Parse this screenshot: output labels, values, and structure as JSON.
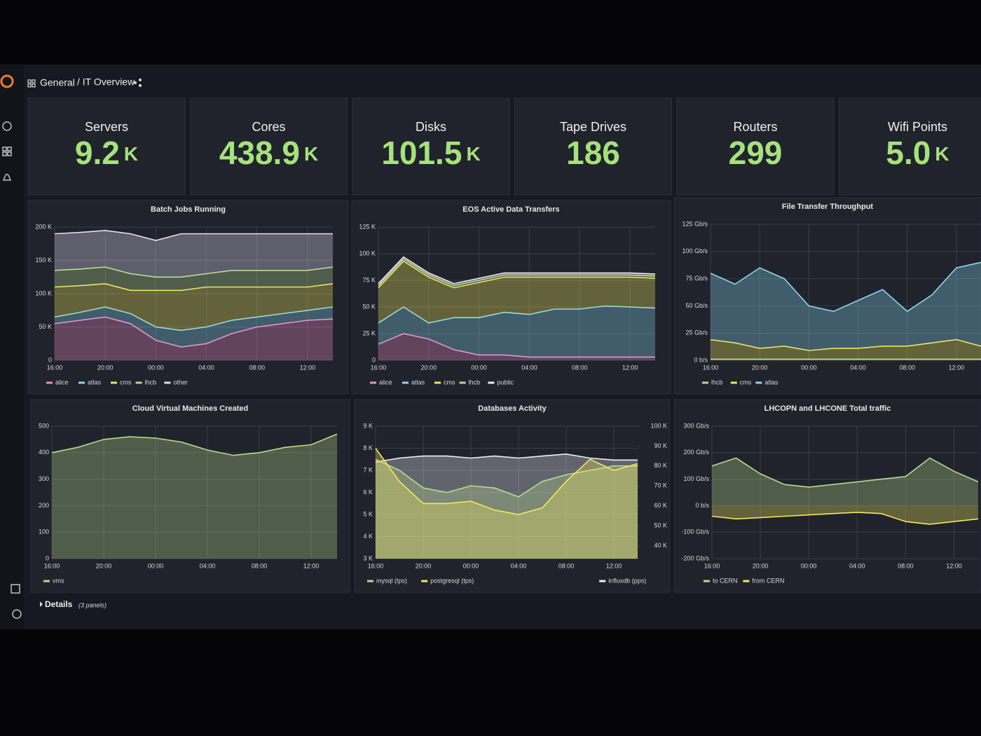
{
  "header": {
    "folder": "General",
    "title": "/ IT Overview"
  },
  "stats": [
    {
      "title": "Servers",
      "value": "9.2",
      "unit": "K"
    },
    {
      "title": "Cores",
      "value": "438.9",
      "unit": "K"
    },
    {
      "title": "Disks",
      "value": "101.5",
      "unit": "K"
    },
    {
      "title": "Tape Drives",
      "value": "186",
      "unit": ""
    },
    {
      "title": "Routers",
      "value": "299",
      "unit": ""
    },
    {
      "title": "Wifi Points",
      "value": "5.0",
      "unit": "K"
    }
  ],
  "chart_data": [
    {
      "type": "area",
      "stacked": true,
      "title": "Batch Jobs Running",
      "categories": [
        "16:00",
        null,
        "20:00",
        null,
        "00:00",
        null,
        "04:00",
        null,
        "08:00",
        null,
        "12:00",
        null
      ],
      "ylim": [
        0,
        200000
      ],
      "yticks": [
        0,
        {
          "value": 50000,
          "label": "50 K"
        },
        {
          "value": 100000,
          "label": "100 K"
        },
        {
          "value": 150000,
          "label": "150 K"
        },
        {
          "value": 200000,
          "label": "200 K"
        }
      ],
      "grid": true,
      "legend": "bottom",
      "series": [
        {
          "name": "alice",
          "color": "#f08cc8",
          "values": [
            55000,
            60000,
            65000,
            55000,
            30000,
            20000,
            25000,
            40000,
            50000,
            55000,
            60000,
            62000
          ]
        },
        {
          "name": "atlas",
          "color": "#8ad8ee",
          "values": [
            10000,
            12000,
            15000,
            15000,
            20000,
            25000,
            25000,
            20000,
            15000,
            15000,
            15000,
            18000
          ]
        },
        {
          "name": "cms",
          "color": "#f2e85a",
          "values": [
            45000,
            40000,
            35000,
            35000,
            55000,
            60000,
            60000,
            50000,
            45000,
            40000,
            35000,
            35000
          ]
        },
        {
          "name": "lhcb",
          "color": "#b7db8c",
          "values": [
            25000,
            25000,
            25000,
            25000,
            20000,
            20000,
            20000,
            25000,
            25000,
            25000,
            25000,
            25000
          ]
        },
        {
          "name": "other",
          "color": "#e6dcf6",
          "values": [
            55000,
            55000,
            55000,
            60000,
            55000,
            65000,
            60000,
            55000,
            55000,
            55000,
            55000,
            50000
          ]
        }
      ]
    },
    {
      "type": "area",
      "stacked": true,
      "title": "EOS Active Data Transfers",
      "categories": [
        "16:00",
        null,
        "20:00",
        null,
        "00:00",
        null,
        "04:00",
        null,
        "08:00",
        null,
        "12:00",
        null
      ],
      "ylim": [
        0,
        125000
      ],
      "yticks": [
        0,
        {
          "value": 25000,
          "label": "25 K"
        },
        {
          "value": 50000,
          "label": "50 K"
        },
        {
          "value": 75000,
          "label": "75 K"
        },
        {
          "value": 100000,
          "label": "100 K"
        },
        {
          "value": 125000,
          "label": "125 K"
        }
      ],
      "grid": true,
      "legend": "bottom",
      "series": [
        {
          "name": "alice",
          "color": "#f08cc8",
          "values": [
            15000,
            25000,
            20000,
            10000,
            5000,
            5000,
            3000,
            3000,
            3000,
            3000,
            3000,
            3000
          ]
        },
        {
          "name": "atlas",
          "color": "#8ad8ee",
          "values": [
            20000,
            25000,
            15000,
            30000,
            35000,
            40000,
            40000,
            45000,
            45000,
            48000,
            47000,
            46000
          ]
        },
        {
          "name": "cms",
          "color": "#f2e85a",
          "values": [
            33000,
            43000,
            43000,
            28000,
            33000,
            33000,
            35000,
            30000,
            30000,
            27000,
            28000,
            28000
          ]
        },
        {
          "name": "lhcb",
          "color": "#b7db8c",
          "values": [
            2000,
            2000,
            2000,
            2000,
            2000,
            2000,
            2000,
            2000,
            2000,
            2000,
            2000,
            2000
          ]
        },
        {
          "name": "public",
          "color": "#f0eef8",
          "values": [
            2000,
            2000,
            2000,
            2000,
            2000,
            2000,
            2000,
            2000,
            2000,
            2000,
            2000,
            2000
          ]
        }
      ]
    },
    {
      "type": "area",
      "stacked": true,
      "title": "File Transfer Throughput",
      "categories": [
        "16:00",
        null,
        "20:00",
        null,
        "00:00",
        null,
        "04:00",
        null,
        "08:00",
        null,
        "12:00",
        null
      ],
      "ylim": [
        0,
        125
      ],
      "yticks": [
        {
          "value": 0,
          "label": "0 b/s"
        },
        {
          "value": 25,
          "label": "25 Gb/s"
        },
        {
          "value": 50,
          "label": "50 Gb/s"
        },
        {
          "value": 75,
          "label": "75 Gb/s"
        },
        {
          "value": 100,
          "label": "100 Gb/s"
        },
        {
          "value": 125,
          "label": "125 Gb/s"
        }
      ],
      "grid": true,
      "legend": "bottom",
      "series": [
        {
          "name": "lhcb",
          "color": "#b7db8c",
          "values": [
            1,
            1,
            1,
            1,
            1,
            1,
            1,
            1,
            1,
            1,
            1,
            1
          ]
        },
        {
          "name": "cms",
          "color": "#f2e85a",
          "values": [
            18,
            15,
            10,
            12,
            8,
            10,
            10,
            12,
            12,
            15,
            18,
            12
          ]
        },
        {
          "name": "atlas",
          "color": "#8ad8ee",
          "values": [
            61,
            54,
            74,
            62,
            41,
            34,
            44,
            52,
            32,
            44,
            66,
            77
          ]
        }
      ]
    },
    {
      "type": "area",
      "stacked": false,
      "title": "Cloud Virtual Machines Created",
      "categories": [
        "16:00",
        null,
        "20:00",
        null,
        "00:00",
        null,
        "04:00",
        null,
        "08:00",
        null,
        "12:00",
        null
      ],
      "ylim": [
        0,
        500
      ],
      "yticks": [
        0,
        100,
        200,
        300,
        400,
        500
      ],
      "grid": true,
      "legend": "bottom",
      "series": [
        {
          "name": "vms",
          "color": "#b7db8c",
          "values": [
            400,
            420,
            450,
            460,
            455,
            440,
            410,
            390,
            400,
            420,
            430,
            470
          ]
        }
      ]
    },
    {
      "type": "area",
      "stacked": false,
      "title": "Databases Activity",
      "categories": [
        "16:00",
        null,
        "20:00",
        null,
        "00:00",
        null,
        "04:00",
        null,
        "08:00",
        null,
        "12:00",
        null
      ],
      "ylim": [
        3000,
        9000
      ],
      "yticks": [
        {
          "value": 3000,
          "label": "3 K"
        },
        {
          "value": 4000,
          "label": "4 K"
        },
        {
          "value": 5000,
          "label": "5 K"
        },
        {
          "value": 6000,
          "label": "6 K"
        },
        {
          "value": 7000,
          "label": "7 K"
        },
        {
          "value": 8000,
          "label": "8 K"
        },
        {
          "value": 9000,
          "label": "9 K"
        }
      ],
      "y2lim": [
        33500,
        100000
      ],
      "y2ticks": [
        {
          "value": 40000,
          "label": "40 K"
        },
        {
          "value": 50000,
          "label": "50 K"
        },
        {
          "value": 60000,
          "label": "60 K"
        },
        {
          "value": 70000,
          "label": "70 K"
        },
        {
          "value": 80000,
          "label": "80 K"
        },
        {
          "value": 90000,
          "label": "90 K"
        },
        {
          "value": 100000,
          "label": "100 K"
        }
      ],
      "grid": true,
      "legend": "bottom",
      "series": [
        {
          "name": "influxdb (pps)",
          "color": "#eeeef8",
          "axis": "y2",
          "values": [
            82000,
            84000,
            85000,
            85000,
            84000,
            85000,
            84000,
            85000,
            86000,
            84000,
            83000,
            83000
          ]
        },
        {
          "name": "mysql (tps)",
          "color": "#b7db8c",
          "values": [
            7500,
            7000,
            6200,
            6000,
            6300,
            6200,
            5800,
            6500,
            6800,
            7000,
            7200,
            7200
          ]
        },
        {
          "name": "postgresql (tps)",
          "color": "#f2e85a",
          "values": [
            8000,
            6500,
            5500,
            5500,
            5600,
            5200,
            5000,
            5300,
            6500,
            7500,
            7000,
            7300
          ]
        }
      ]
    },
    {
      "type": "area",
      "stacked": false,
      "title": "LHCOPN and LHCONE Total traffic",
      "categories": [
        "16:00",
        null,
        "20:00",
        null,
        "00:00",
        null,
        "04:00",
        null,
        "08:00",
        null,
        "12:00",
        null
      ],
      "ylim": [
        -200,
        300
      ],
      "yticks": [
        {
          "value": -200,
          "label": "-200 Gb/s"
        },
        {
          "value": -100,
          "label": "-100 Gb/s"
        },
        {
          "value": 0,
          "label": "0 b/s"
        },
        {
          "value": 100,
          "label": "100 Gb/s"
        },
        {
          "value": 200,
          "label": "200 Gb/s"
        },
        {
          "value": 300,
          "label": "300 Gb/s"
        }
      ],
      "grid": true,
      "legend": "bottom",
      "series": [
        {
          "name": "to CERN",
          "color": "#b7db8c",
          "values": [
            150,
            180,
            120,
            80,
            70,
            80,
            90,
            100,
            110,
            180,
            130,
            90
          ]
        },
        {
          "name": "from CERN",
          "color": "#f2e85a",
          "values": [
            -40,
            -50,
            -45,
            -40,
            -35,
            -30,
            -25,
            -30,
            -60,
            -70,
            -60,
            -50
          ]
        }
      ]
    }
  ],
  "footer": {
    "section": "Details",
    "note": "(3 panels)"
  }
}
